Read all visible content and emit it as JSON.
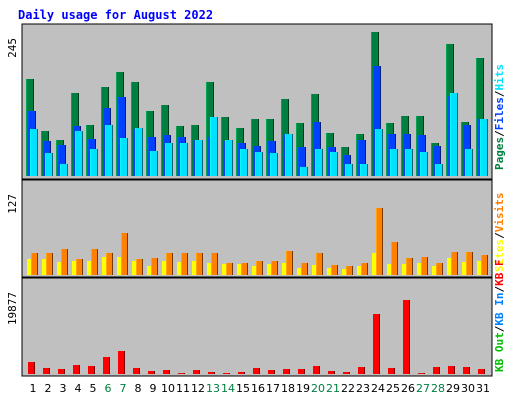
{
  "title": "Daily usage for August 2022",
  "colors": {
    "background": "#c0c0c0",
    "title": "#0000ff",
    "hits": "#008040",
    "files": "#0040ff",
    "pages": "#00e0ff",
    "visits": "#ffff00",
    "sites": "#ff8000",
    "kbin": "#0080ff",
    "kbout": "#00c000",
    "kbf": "#ff0000",
    "weekend_label": "#008040"
  },
  "chart_data": [
    {
      "type": "bar",
      "panel": "top",
      "y_max_label": "245",
      "ylim": [
        0,
        245
      ],
      "categories": [
        "1",
        "2",
        "3",
        "4",
        "5",
        "6",
        "7",
        "8",
        "9",
        "10",
        "11",
        "12",
        "13",
        "14",
        "15",
        "16",
        "17",
        "18",
        "19",
        "20",
        "21",
        "22",
        "23",
        "24",
        "25",
        "26",
        "27",
        "28",
        "29",
        "30",
        "31"
      ],
      "legend": [
        "Hits",
        "/",
        "Files",
        "/",
        "Pages"
      ],
      "series": [
        {
          "name": "Hits",
          "values": [
            160,
            75,
            60,
            138,
            85,
            148,
            172,
            155,
            108,
            118,
            82,
            85,
            155,
            98,
            80,
            95,
            95,
            128,
            88,
            136,
            72,
            48,
            70,
            238,
            88,
            100,
            100,
            55,
            218,
            90,
            195
          ]
        },
        {
          "name": "Files",
          "values": [
            108,
            58,
            52,
            82,
            62,
            112,
            130,
            77,
            65,
            68,
            65,
            60,
            65,
            58,
            55,
            50,
            58,
            70,
            48,
            90,
            48,
            35,
            60,
            182,
            70,
            70,
            68,
            50,
            132,
            85,
            95
          ]
        },
        {
          "name": "Pages",
          "values": [
            78,
            38,
            20,
            75,
            45,
            85,
            63,
            80,
            42,
            55,
            54,
            60,
            98,
            60,
            45,
            40,
            38,
            70,
            15,
            45,
            40,
            20,
            20,
            78,
            45,
            45,
            40,
            20,
            138,
            45,
            95
          ]
        }
      ]
    },
    {
      "type": "bar",
      "panel": "middle",
      "y_max_label": "127",
      "ylim": [
        0,
        127
      ],
      "legend": [
        "Visits",
        "/",
        "Sites"
      ],
      "series": [
        {
          "name": "Visits",
          "values": [
            22,
            22,
            18,
            20,
            20,
            25,
            25,
            20,
            12,
            20,
            18,
            20,
            17,
            15,
            15,
            12,
            15,
            16,
            10,
            14,
            10,
            8,
            12,
            31,
            15,
            15,
            16,
            12,
            23,
            18,
            20
          ]
        },
        {
          "name": "Sites",
          "values": [
            30,
            30,
            36,
            22,
            36,
            30,
            58,
            22,
            23,
            30,
            30,
            30,
            30,
            16,
            16,
            19,
            20,
            33,
            16,
            30,
            14,
            12,
            16,
            93,
            46,
            23,
            25,
            16,
            32,
            32,
            28
          ]
        }
      ]
    },
    {
      "type": "bar",
      "panel": "bottom",
      "y_max_label": "19877",
      "ylim": [
        0,
        19877
      ],
      "legend": [
        "KB F",
        "/",
        "KB In",
        "/",
        "KB Out"
      ],
      "series": [
        {
          "name": "KB F",
          "values": [
            2700,
            1400,
            1100,
            1950,
            1650,
            3600,
            5000,
            1400,
            650,
            800,
            250,
            800,
            400,
            280,
            350,
            1300,
            900,
            1000,
            1050,
            1800,
            600,
            520,
            1550,
            13000,
            1350,
            16000,
            300,
            1550,
            1650,
            1500,
            1150
          ]
        },
        {
          "name": "KB In",
          "values": []
        },
        {
          "name": "KB Out",
          "values": []
        }
      ]
    }
  ]
}
